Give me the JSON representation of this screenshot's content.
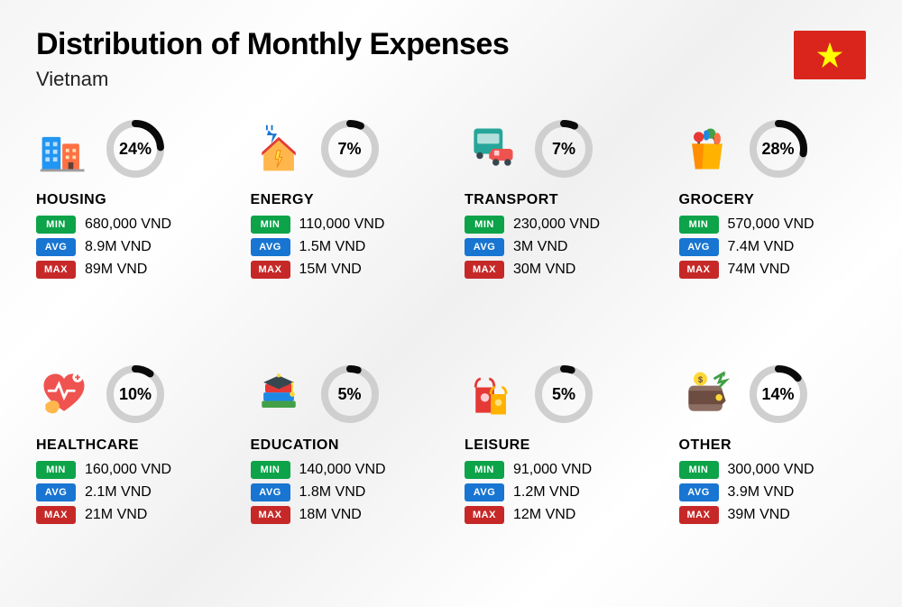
{
  "title": "Distribution of Monthly Expenses",
  "subtitle": "Vietnam",
  "flag": {
    "bg": "#DA251D",
    "star": "#FFFF00"
  },
  "ring_style": {
    "track_color": "#cfcfcf",
    "progress_color": "#0a0a0a",
    "stroke_width": 8
  },
  "badges": {
    "min": "MIN",
    "avg": "AVG",
    "max": "MAX"
  },
  "badge_colors": {
    "min": "#0DA349",
    "avg": "#1875D1",
    "max": "#C62828"
  },
  "categories": [
    {
      "key": "housing",
      "name": "HOUSING",
      "pct": 24,
      "pct_label": "24%",
      "min": "680,000 VND",
      "avg": "8.9M VND",
      "max": "89M VND"
    },
    {
      "key": "energy",
      "name": "ENERGY",
      "pct": 7,
      "pct_label": "7%",
      "min": "110,000 VND",
      "avg": "1.5M VND",
      "max": "15M VND"
    },
    {
      "key": "transport",
      "name": "TRANSPORT",
      "pct": 7,
      "pct_label": "7%",
      "min": "230,000 VND",
      "avg": "3M VND",
      "max": "30M VND"
    },
    {
      "key": "grocery",
      "name": "GROCERY",
      "pct": 28,
      "pct_label": "28%",
      "min": "570,000 VND",
      "avg": "7.4M VND",
      "max": "74M VND"
    },
    {
      "key": "healthcare",
      "name": "HEALTHCARE",
      "pct": 10,
      "pct_label": "10%",
      "min": "160,000 VND",
      "avg": "2.1M VND",
      "max": "21M VND"
    },
    {
      "key": "education",
      "name": "EDUCATION",
      "pct": 5,
      "pct_label": "5%",
      "min": "140,000 VND",
      "avg": "1.8M VND",
      "max": "18M VND"
    },
    {
      "key": "leisure",
      "name": "LEISURE",
      "pct": 5,
      "pct_label": "5%",
      "min": "91,000 VND",
      "avg": "1.2M VND",
      "max": "12M VND"
    },
    {
      "key": "other",
      "name": "OTHER",
      "pct": 14,
      "pct_label": "14%",
      "min": "300,000 VND",
      "avg": "3.9M VND",
      "max": "39M VND"
    }
  ]
}
